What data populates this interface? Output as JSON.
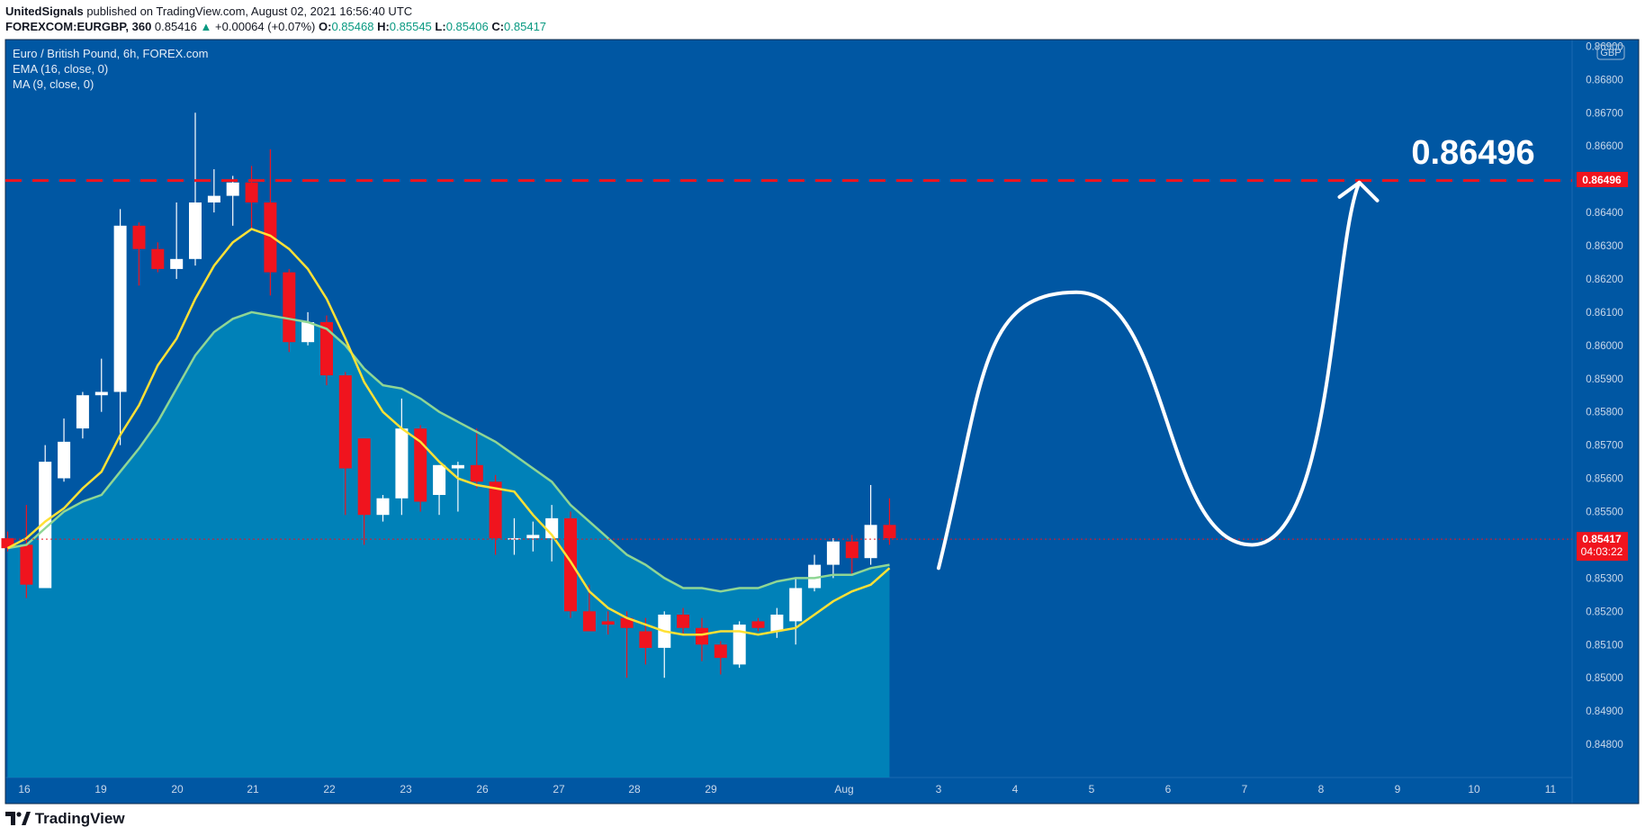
{
  "header": {
    "line1": {
      "author": "UnitedSignals",
      "published": "published on TradingView.com, August 02, 2021 16:56:40 UTC"
    },
    "line2": {
      "symbol": "FOREXCOM:EURGBP, 360",
      "price": "0.85416",
      "change_arrow": "▲",
      "change": "+0.00064 (+0.07%)",
      "o_label": "O:",
      "o": "0.85468",
      "h_label": "H:",
      "h": "0.85545",
      "l_label": "L:",
      "l": "0.85406",
      "c_label": "C:",
      "c": "0.85417"
    }
  },
  "legend": {
    "title": "Euro / British Pound, 6h, FOREX.com",
    "ema": "EMA (16, close, 0)",
    "ma": "MA (9, close, 0)"
  },
  "footer": {
    "brand": "TradingView",
    "logo_icon": "tradingview-logo-icon"
  },
  "colors": {
    "background": "#0057a3",
    "area_fill": "#0081b8",
    "up_candle": "#ffffff",
    "down_candle": "#f0141e",
    "ema_line": "#8fd694",
    "ma_line": "#ffe135",
    "target_line": "#f0141e",
    "projection": "#ffffff"
  },
  "chart_data": {
    "type": "candlestick",
    "symbol": "EURGBP",
    "interval": "6h",
    "currency": "GBP",
    "y_axis": {
      "range": [
        0.847,
        0.8692
      ],
      "ticks": [
        "0.84800",
        "0.84900",
        "0.85000",
        "0.85100",
        "0.85200",
        "0.85300",
        "0.85400",
        "0.85500",
        "0.85600",
        "0.85700",
        "0.85800",
        "0.85900",
        "0.86000",
        "0.86100",
        "0.86200",
        "0.86300",
        "0.86400",
        "0.86500",
        "0.86600",
        "0.86700",
        "0.86800",
        "0.86900"
      ]
    },
    "x_axis": {
      "labels": [
        "16",
        "19",
        "20",
        "21",
        "22",
        "23",
        "26",
        "27",
        "28",
        "29",
        "Aug",
        "3",
        "4",
        "5",
        "6",
        "7",
        "8",
        "9",
        "10",
        "11"
      ]
    },
    "candles": [
      {
        "o": 0.8542,
        "h": 0.8544,
        "l": 0.8538,
        "c": 0.8539
      },
      {
        "o": 0.854,
        "h": 0.8552,
        "l": 0.8524,
        "c": 0.8528
      },
      {
        "o": 0.8527,
        "h": 0.857,
        "l": 0.8527,
        "c": 0.8565
      },
      {
        "o": 0.856,
        "h": 0.8578,
        "l": 0.8559,
        "c": 0.8571
      },
      {
        "o": 0.8575,
        "h": 0.8586,
        "l": 0.8572,
        "c": 0.8585
      },
      {
        "o": 0.8585,
        "h": 0.8596,
        "l": 0.858,
        "c": 0.8586
      },
      {
        "o": 0.8586,
        "h": 0.8641,
        "l": 0.857,
        "c": 0.8636
      },
      {
        "o": 0.8636,
        "h": 0.8637,
        "l": 0.8618,
        "c": 0.8629
      },
      {
        "o": 0.8629,
        "h": 0.8631,
        "l": 0.8622,
        "c": 0.8623
      },
      {
        "o": 0.8623,
        "h": 0.8643,
        "l": 0.862,
        "c": 0.8626
      },
      {
        "o": 0.8626,
        "h": 0.867,
        "l": 0.8624,
        "c": 0.8643
      },
      {
        "o": 0.8643,
        "h": 0.8653,
        "l": 0.864,
        "c": 0.8645
      },
      {
        "o": 0.8645,
        "h": 0.8651,
        "l": 0.8636,
        "c": 0.8649
      },
      {
        "o": 0.8649,
        "h": 0.8654,
        "l": 0.8635,
        "c": 0.8643
      },
      {
        "o": 0.8643,
        "h": 0.8659,
        "l": 0.8615,
        "c": 0.8622
      },
      {
        "o": 0.8622,
        "h": 0.8623,
        "l": 0.8598,
        "c": 0.8601
      },
      {
        "o": 0.8601,
        "h": 0.861,
        "l": 0.86,
        "c": 0.8607
      },
      {
        "o": 0.8607,
        "h": 0.8609,
        "l": 0.8588,
        "c": 0.8591
      },
      {
        "o": 0.8591,
        "h": 0.8592,
        "l": 0.8549,
        "c": 0.8563
      },
      {
        "o": 0.8572,
        "h": 0.8572,
        "l": 0.854,
        "c": 0.8549
      },
      {
        "o": 0.8549,
        "h": 0.8555,
        "l": 0.8547,
        "c": 0.8554
      },
      {
        "o": 0.8554,
        "h": 0.8584,
        "l": 0.8549,
        "c": 0.8575
      },
      {
        "o": 0.8575,
        "h": 0.8576,
        "l": 0.855,
        "c": 0.8553
      },
      {
        "o": 0.8555,
        "h": 0.8564,
        "l": 0.8549,
        "c": 0.8564
      },
      {
        "o": 0.8563,
        "h": 0.8565,
        "l": 0.855,
        "c": 0.8564
      },
      {
        "o": 0.8564,
        "h": 0.8575,
        "l": 0.8557,
        "c": 0.8559
      },
      {
        "o": 0.8559,
        "h": 0.8561,
        "l": 0.8537,
        "c": 0.8542
      },
      {
        "o": 0.8542,
        "h": 0.8548,
        "l": 0.8537,
        "c": 0.8542
      },
      {
        "o": 0.8542,
        "h": 0.8547,
        "l": 0.8538,
        "c": 0.8543
      },
      {
        "o": 0.8542,
        "h": 0.8552,
        "l": 0.8535,
        "c": 0.8548
      },
      {
        "o": 0.8548,
        "h": 0.855,
        "l": 0.8518,
        "c": 0.852
      },
      {
        "o": 0.852,
        "h": 0.8528,
        "l": 0.8515,
        "c": 0.8514
      },
      {
        "o": 0.8517,
        "h": 0.852,
        "l": 0.8513,
        "c": 0.8516
      },
      {
        "o": 0.8518,
        "h": 0.852,
        "l": 0.85,
        "c": 0.8515
      },
      {
        "o": 0.8514,
        "h": 0.8518,
        "l": 0.8504,
        "c": 0.8509
      },
      {
        "o": 0.8509,
        "h": 0.852,
        "l": 0.85,
        "c": 0.8519
      },
      {
        "o": 0.8519,
        "h": 0.8521,
        "l": 0.8513,
        "c": 0.8515
      },
      {
        "o": 0.8515,
        "h": 0.8518,
        "l": 0.8505,
        "c": 0.851
      },
      {
        "o": 0.851,
        "h": 0.8511,
        "l": 0.8501,
        "c": 0.8506
      },
      {
        "o": 0.8504,
        "h": 0.8517,
        "l": 0.8503,
        "c": 0.8516
      },
      {
        "o": 0.8517,
        "h": 0.8518,
        "l": 0.8514,
        "c": 0.8515
      },
      {
        "o": 0.8514,
        "h": 0.8521,
        "l": 0.8512,
        "c": 0.8519
      },
      {
        "o": 0.8517,
        "h": 0.853,
        "l": 0.851,
        "c": 0.8527
      },
      {
        "o": 0.8527,
        "h": 0.8537,
        "l": 0.8526,
        "c": 0.8534
      },
      {
        "o": 0.8534,
        "h": 0.8542,
        "l": 0.853,
        "c": 0.8541
      },
      {
        "o": 0.8541,
        "h": 0.8543,
        "l": 0.8531,
        "c": 0.8536
      },
      {
        "o": 0.8536,
        "h": 0.8558,
        "l": 0.8534,
        "c": 0.8546
      },
      {
        "o": 0.8546,
        "h": 0.8554,
        "l": 0.854,
        "c": 0.8542
      }
    ],
    "ema": [
      0.8539,
      0.854,
      0.8545,
      0.855,
      0.8553,
      0.8555,
      0.8562,
      0.8569,
      0.8577,
      0.8587,
      0.8597,
      0.8604,
      0.8608,
      0.861,
      0.8609,
      0.8608,
      0.8607,
      0.8605,
      0.86,
      0.8593,
      0.8588,
      0.8587,
      0.8584,
      0.858,
      0.8577,
      0.8574,
      0.8571,
      0.8567,
      0.8563,
      0.8559,
      0.8552,
      0.8547,
      0.8542,
      0.8537,
      0.8534,
      0.853,
      0.8527,
      0.8527,
      0.8526,
      0.8527,
      0.8527,
      0.8529,
      0.853,
      0.853,
      0.8531,
      0.8531,
      0.8533,
      0.8534
    ],
    "ma": [
      0.8539,
      0.8542,
      0.8547,
      0.8551,
      0.8557,
      0.8562,
      0.8573,
      0.8582,
      0.8594,
      0.8602,
      0.8614,
      0.8624,
      0.8631,
      0.8635,
      0.8633,
      0.8629,
      0.8623,
      0.8614,
      0.8602,
      0.8589,
      0.858,
      0.8575,
      0.8571,
      0.8565,
      0.856,
      0.8558,
      0.8557,
      0.8556,
      0.8549,
      0.8543,
      0.8535,
      0.8526,
      0.8521,
      0.8518,
      0.8516,
      0.8514,
      0.8513,
      0.8513,
      0.8514,
      0.8514,
      0.8513,
      0.8514,
      0.8515,
      0.8519,
      0.8523,
      0.8526,
      0.8528,
      0.8533
    ],
    "current_price": {
      "value": "0.85417",
      "countdown": "04:03:22"
    },
    "target": {
      "value": "0.86496",
      "label": "0.86496",
      "style": "dashed"
    },
    "projection_path": [
      {
        "x": 3.0,
        "y": 0.8533
      },
      {
        "x": 4.8,
        "y": 0.8616
      },
      {
        "x": 7.1,
        "y": 0.854
      },
      {
        "x": 8.5,
        "y": 0.8649
      }
    ]
  }
}
